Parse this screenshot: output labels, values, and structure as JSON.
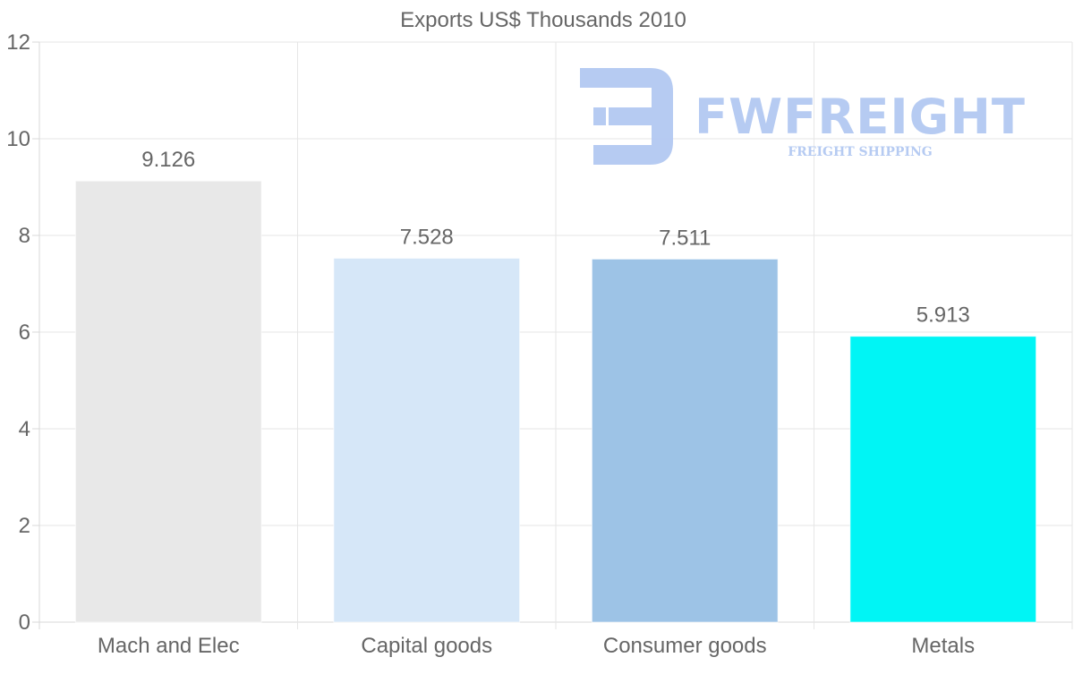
{
  "chart_data": {
    "type": "bar",
    "title": "Exports US$ Thousands 2010",
    "categories": [
      "Mach and Elec",
      "Capital goods",
      "Consumer goods",
      "Metals"
    ],
    "values": [
      9.126,
      7.528,
      7.511,
      5.913
    ],
    "value_labels": [
      "9.126",
      "7.528",
      "7.511",
      "5.913"
    ],
    "colors": [
      "#e8e8e8",
      "#d6e7f8",
      "#9dc3e6",
      "#00f5f5"
    ],
    "ylim": [
      0,
      12
    ],
    "yticks": [
      0,
      2,
      4,
      6,
      8,
      10,
      12
    ],
    "ytick_labels": [
      "0",
      "2",
      "4",
      "6",
      "8",
      "10",
      "12"
    ],
    "xlabel": "",
    "ylabel": "",
    "grid": true,
    "legend": "none"
  },
  "watermark": {
    "name": "FWFREIGHT",
    "tagline": "FREIGHT SHIPPING",
    "color": "#b3c9f2"
  }
}
